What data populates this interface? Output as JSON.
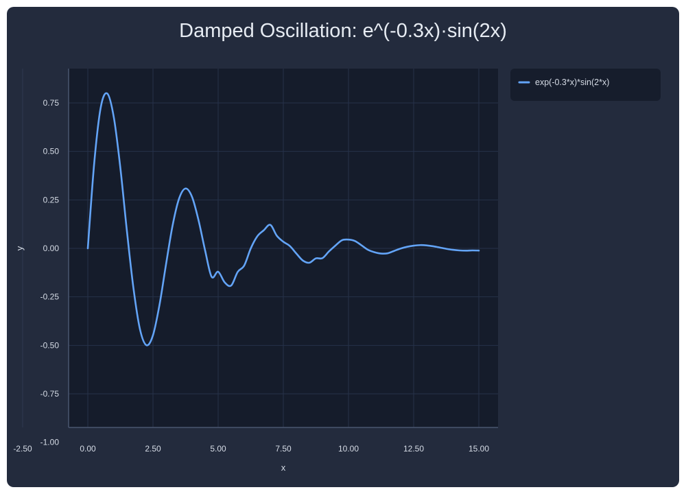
{
  "chart_data": {
    "type": "line",
    "title": "Damped Oscillation: e^(-0.3x)·sin(2x)",
    "xlabel": "x",
    "ylabel": "y",
    "xlim": [
      -2.5,
      15.75
    ],
    "ylim": [
      -1.0,
      0.9
    ],
    "x_ticks": [
      "-2.50",
      "0.00",
      "2.50",
      "5.00",
      "7.50",
      "10.00",
      "12.50",
      "15.00"
    ],
    "x_tick_values": [
      -2.5,
      0,
      2.5,
      5,
      7.5,
      10,
      12.5,
      15
    ],
    "y_ticks": [
      "0.75",
      "0.50",
      "0.25",
      "0.00",
      "-0.25",
      "-0.50",
      "-0.75",
      "-1.00"
    ],
    "y_tick_values": [
      0.75,
      0.5,
      0.25,
      0,
      -0.25,
      -0.5,
      -0.75,
      -1.0
    ],
    "grid": true,
    "legend_position": "right",
    "series": [
      {
        "name": "exp(-0.3*x)*sin(2*x)",
        "color": "#63a4f7",
        "x": [
          0,
          0.25,
          0.5,
          0.75,
          1,
          1.25,
          1.5,
          1.75,
          2,
          2.25,
          2.5,
          2.75,
          3,
          3.25,
          3.5,
          3.75,
          4,
          4.25,
          4.5,
          4.75,
          5,
          5.25,
          5.5,
          5.75,
          6,
          6.25,
          6.5,
          6.75,
          7,
          7.25,
          7.5,
          7.75,
          8,
          8.25,
          8.5,
          8.75,
          9,
          9.25,
          9.5,
          9.75,
          10,
          10.25,
          10.5,
          10.75,
          11,
          11.25,
          11.5,
          11.75,
          12,
          12.25,
          12.5,
          12.75,
          13,
          13.25,
          13.5,
          13.75,
          14,
          14.25,
          14.5,
          14.75,
          15
        ],
        "y": [
          0,
          0.4459,
          0.7295,
          0.7979,
          0.6736,
          0.4131,
          0.0895,
          -0.2043,
          -0.4165,
          -0.4993,
          -0.4477,
          -0.2914,
          -0.0828,
          0.1164,
          0.2563,
          0.3087,
          0.2649,
          0.1435,
          -0.0107,
          -0.1467,
          -0.1205,
          -0.1751,
          -0.1915,
          -0.1213,
          -0.0884,
          -0.0006,
          0.0618,
          0.0934,
          0.1214,
          0.0652,
          0.0342,
          0.0121,
          -0.0264,
          -0.0628,
          -0.0739,
          -0.0515,
          -0.0504,
          -0.0159,
          0.0147,
          0.0419,
          0.0453,
          0.0378,
          0.0157,
          -0.0075,
          -0.0198,
          -0.0267,
          -0.0255,
          -0.0132,
          -0.0007,
          0.0082,
          0.0138,
          0.0168,
          0.0154,
          0.0108,
          0.0045,
          -0.0022,
          -0.0074,
          -0.0106,
          -0.0117,
          -0.0106,
          -0.0112
        ]
      }
    ]
  }
}
